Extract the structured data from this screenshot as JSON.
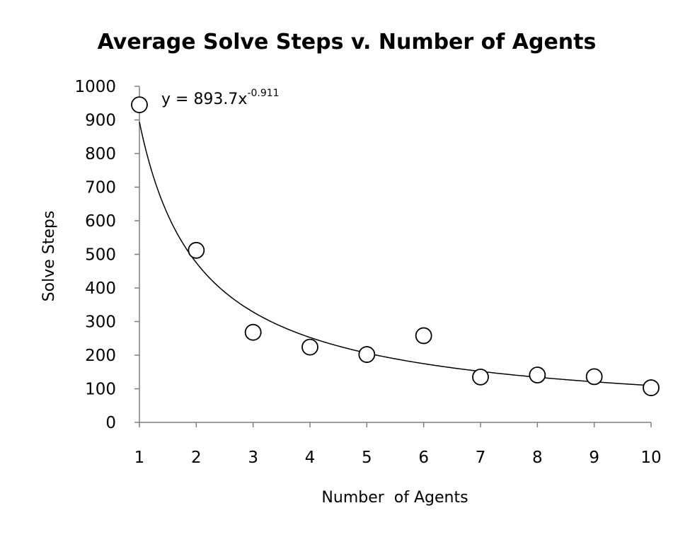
{
  "chart_data": {
    "type": "scatter",
    "title": "Average Solve Steps v. Number of Agents",
    "xlabel": "Number  of Agents",
    "ylabel": "Solve Steps",
    "xlim": [
      1,
      10
    ],
    "ylim": [
      0,
      1000
    ],
    "x_ticks": [
      "1",
      "2",
      "3",
      "4",
      "5",
      "6",
      "7",
      "8",
      "9",
      "10"
    ],
    "y_ticks": [
      "0",
      "100",
      "200",
      "300",
      "400",
      "500",
      "600",
      "700",
      "800",
      "900",
      "1000"
    ],
    "grid": false,
    "legend": "none",
    "series": [
      {
        "marker": "open-circle",
        "points": [
          {
            "x": 1,
            "y": 945
          },
          {
            "x": 2,
            "y": 512
          },
          {
            "x": 3,
            "y": 268
          },
          {
            "x": 4,
            "y": 224
          },
          {
            "x": 5,
            "y": 202
          },
          {
            "x": 6,
            "y": 258
          },
          {
            "x": 7,
            "y": 135
          },
          {
            "x": 8,
            "y": 141
          },
          {
            "x": 9,
            "y": 136
          },
          {
            "x": 10,
            "y": 103
          }
        ]
      }
    ],
    "trendline": {
      "type": "power",
      "coefficient": 893.7,
      "exponent": -0.911,
      "equation_base": "y = 893.7x",
      "equation_exponent": "-0.911"
    }
  }
}
